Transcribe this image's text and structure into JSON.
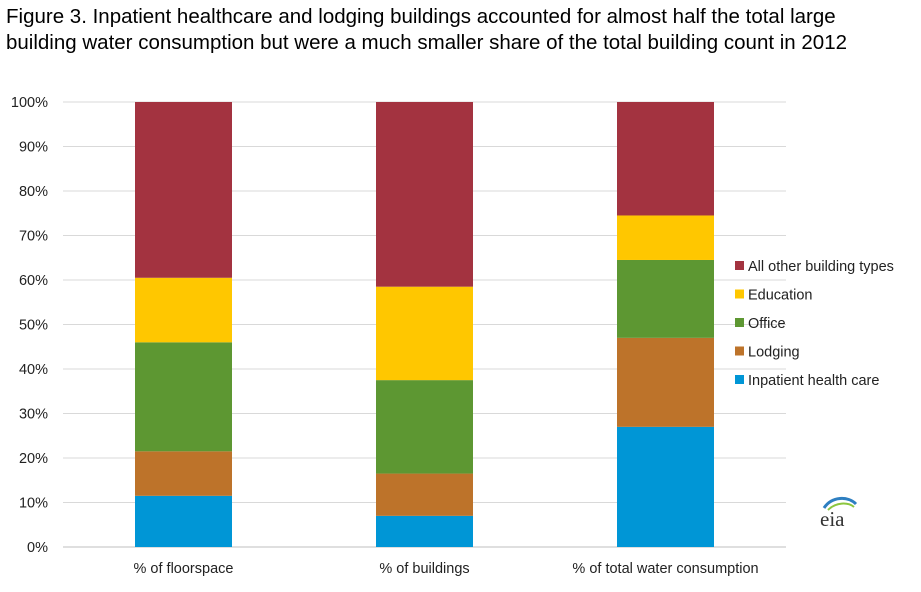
{
  "title_lines": [
    "Figure 3.  Inpatient healthcare and lodging buildings accounted for almost half the total large",
    "building water consumption but were a much smaller share of the total building count in 2012"
  ],
  "logo_text": "eia",
  "chart_data": {
    "type": "bar",
    "stacked": true,
    "categories": [
      "% of floorspace",
      "% of buildings",
      "% of total water consumption"
    ],
    "series": [
      {
        "name": "Inpatient health care",
        "color": "#0096d6",
        "values": [
          11.5,
          7.0,
          27.0
        ]
      },
      {
        "name": "Lodging",
        "color": "#bd732a",
        "values": [
          10.0,
          9.5,
          20.0
        ]
      },
      {
        "name": "Office",
        "color": "#5d9732",
        "values": [
          24.5,
          21.0,
          17.5
        ]
      },
      {
        "name": "Education",
        "color": "#ffc700",
        "values": [
          14.5,
          21.0,
          10.0
        ]
      },
      {
        "name": "All other building types",
        "color": "#a33340",
        "values": [
          39.5,
          41.5,
          25.5
        ]
      }
    ],
    "legend_order": [
      "All other building types",
      "Education",
      "Office",
      "Lodging",
      "Inpatient health care"
    ],
    "ylim": [
      0,
      100
    ],
    "yticks": [
      "0%",
      "10%",
      "20%",
      "30%",
      "40%",
      "50%",
      "60%",
      "70%",
      "80%",
      "90%",
      "100%"
    ],
    "xlabel": "",
    "ylabel": "",
    "grid": true,
    "legend_position": "right"
  }
}
